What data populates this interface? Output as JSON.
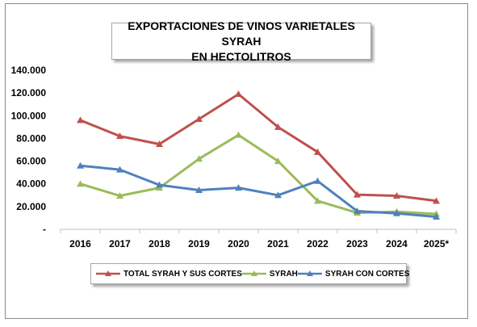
{
  "chart_data": {
    "type": "line",
    "title_lines": [
      "EXPORTACIONES DE VINOS VARIETALES SYRAH",
      "EN HECTOLITROS"
    ],
    "categories": [
      "2016",
      "2017",
      "2018",
      "2019",
      "2020",
      "2021",
      "2022",
      "2023",
      "2024",
      "2025*"
    ],
    "y_ticks": [
      "-",
      "20.000",
      "40.000",
      "60.000",
      "80.000",
      "100.000",
      "120.000",
      "140.000"
    ],
    "ylim": [
      0,
      140000
    ],
    "grid": false,
    "legend_position": "bottom",
    "series": [
      {
        "name": "TOTAL SYRAH Y SUS CORTES",
        "color": "#c0504d",
        "values": [
          96000,
          82000,
          75000,
          97000,
          119000,
          90000,
          68000,
          30500,
          29500,
          25000
        ]
      },
      {
        "name": "SYRAH",
        "color": "#9bbb59",
        "values": [
          40000,
          29500,
          36500,
          62000,
          83000,
          60000,
          25000,
          14500,
          15500,
          13500
        ]
      },
      {
        "name": "SYRAH CON CORTES",
        "color": "#4f81bd",
        "values": [
          56000,
          52500,
          39000,
          34500,
          36500,
          30000,
          42500,
          16000,
          14000,
          11000
        ]
      }
    ]
  }
}
